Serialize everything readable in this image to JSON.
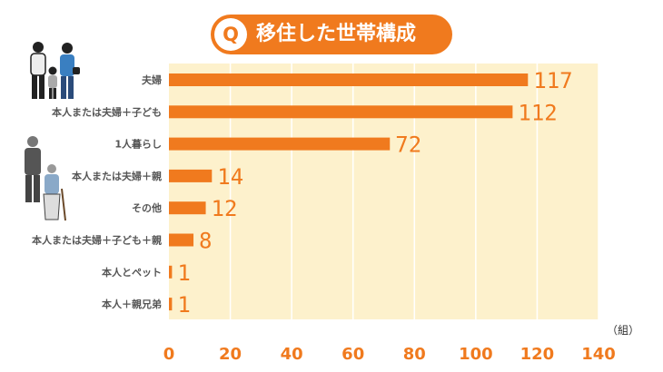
{
  "header": {
    "q_mark": "Q",
    "title": "移住した世帯構成"
  },
  "colors": {
    "accent": "#f07a1e",
    "plot_bg": "#fdf1cc",
    "grid": "#ffffff",
    "label": "#555555"
  },
  "icons": [
    "family-icon",
    "elderly-couple-icon"
  ],
  "chart_data": {
    "type": "bar",
    "orientation": "horizontal",
    "categories": [
      "夫婦",
      "本人または夫婦＋子ども",
      "1人暮らし",
      "本人または夫婦＋親",
      "その他",
      "本人または夫婦＋子ども＋親",
      "本人とペット",
      "本人＋親兄弟"
    ],
    "values": [
      117,
      112,
      72,
      14,
      12,
      8,
      1,
      1
    ],
    "unit": "（組）",
    "xlim": [
      0,
      140
    ],
    "xticks": [
      0,
      20,
      40,
      60,
      80,
      100,
      120,
      140
    ],
    "grid": true
  }
}
